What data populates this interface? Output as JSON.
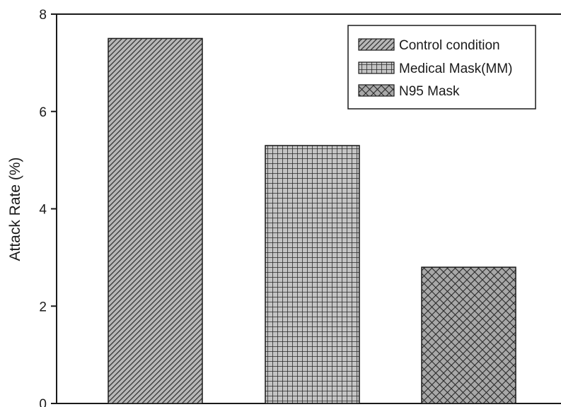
{
  "chart_data": {
    "type": "bar",
    "title": "",
    "xlabel": "",
    "ylabel": "Attack Rate (%)",
    "ylim": [
      0,
      8
    ],
    "yticks": [
      0,
      2,
      4,
      6,
      8
    ],
    "grid": false,
    "legend_position": "top-right",
    "series": [
      {
        "name": "Control condition",
        "value": 7.5,
        "pattern": "diagonal-stripes"
      },
      {
        "name": "Medical Mask(MM)",
        "value": 5.3,
        "pattern": "square-grid"
      },
      {
        "name": "N95 Mask",
        "value": 2.8,
        "pattern": "diamond-crosshatch"
      }
    ],
    "colors": {
      "bar_fill_light": "#b8b8b8",
      "bar_fill_mid": "#a8a8a8",
      "pattern_line": "#2a2a2a",
      "axis": "#1a1a1a"
    }
  }
}
